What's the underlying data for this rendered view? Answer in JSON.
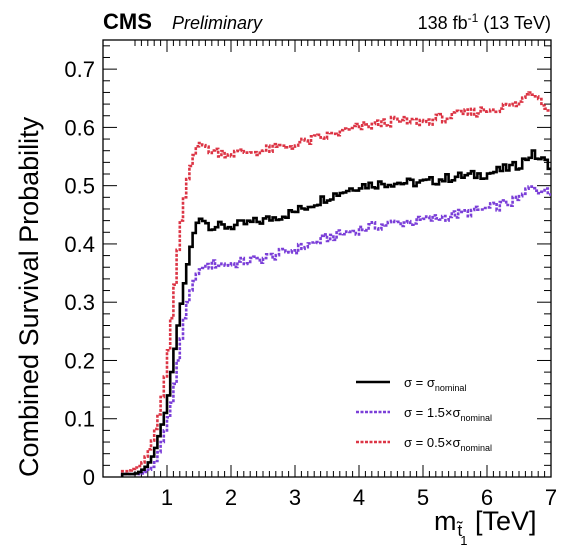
{
  "header": {
    "experiment": "CMS",
    "status": "Preliminary",
    "lumi_prefix": "138 fb",
    "lumi_exp": "-1",
    "lumi_suffix": " (13 TeV)"
  },
  "chart_data": {
    "type": "line",
    "style": "step-histogram",
    "xlabel": "m",
    "xlabel_sub": "t̃",
    "xlabel_subsub": "1",
    "xlabel_unit": " [TeV]",
    "ylabel": "Combined Survival Probability",
    "xlim": [
      0,
      7
    ],
    "ylim": [
      0,
      0.75
    ],
    "x_ticks": [
      "1",
      "2",
      "3",
      "4",
      "5",
      "6",
      "7"
    ],
    "y_ticks": [
      "0",
      "0.1",
      "0.2",
      "0.3",
      "0.4",
      "0.5",
      "0.6",
      "0.7"
    ],
    "grid": false,
    "legend_position": "bottom-right",
    "bin_width": 0.1,
    "series": [
      {
        "name": "σ = σ",
        "name_sub": "nominal",
        "color": "#000000",
        "dashed": false,
        "x": [
          0.3,
          0.4,
          0.5,
          0.6,
          0.7,
          0.8,
          0.9,
          1.0,
          1.1,
          1.2,
          1.3,
          1.4,
          1.5,
          1.7,
          2.0,
          2.5,
          3.0,
          3.5,
          4.0,
          4.5,
          5.0,
          5.5,
          6.0,
          6.5,
          6.7,
          7.0
        ],
        "y": [
          0.005,
          0.005,
          0.005,
          0.01,
          0.02,
          0.04,
          0.08,
          0.12,
          0.2,
          0.28,
          0.35,
          0.41,
          0.445,
          0.43,
          0.43,
          0.44,
          0.455,
          0.48,
          0.5,
          0.505,
          0.505,
          0.515,
          0.52,
          0.535,
          0.555,
          0.535
        ]
      },
      {
        "name": "σ = 1.5×σ",
        "name_sub": "nominal",
        "color": "#7b3fd8",
        "dashed": true,
        "x": [
          0.3,
          0.4,
          0.5,
          0.6,
          0.7,
          0.8,
          0.9,
          1.0,
          1.1,
          1.2,
          1.3,
          1.4,
          1.5,
          1.7,
          2.0,
          2.5,
          3.0,
          3.5,
          4.0,
          4.5,
          5.0,
          5.5,
          6.0,
          6.5,
          6.7,
          7.0
        ],
        "y": [
          0.005,
          0.005,
          0.005,
          0.005,
          0.01,
          0.02,
          0.05,
          0.09,
          0.14,
          0.22,
          0.29,
          0.33,
          0.355,
          0.365,
          0.365,
          0.375,
          0.39,
          0.41,
          0.425,
          0.435,
          0.44,
          0.45,
          0.46,
          0.475,
          0.5,
          0.485
        ]
      },
      {
        "name": "σ = 0.5×σ",
        "name_sub": "nominal",
        "color": "#dc3545",
        "dashed": true,
        "x": [
          0.3,
          0.4,
          0.5,
          0.6,
          0.7,
          0.8,
          0.9,
          1.0,
          1.1,
          1.2,
          1.3,
          1.4,
          1.5,
          1.7,
          2.0,
          2.5,
          3.0,
          3.5,
          4.0,
          4.5,
          5.0,
          5.5,
          6.0,
          6.5,
          6.7,
          7.0
        ],
        "y": [
          0.01,
          0.01,
          0.015,
          0.02,
          0.04,
          0.07,
          0.12,
          0.19,
          0.3,
          0.42,
          0.5,
          0.545,
          0.575,
          0.56,
          0.555,
          0.56,
          0.57,
          0.585,
          0.6,
          0.61,
          0.61,
          0.62,
          0.63,
          0.64,
          0.665,
          0.63
        ]
      }
    ]
  }
}
